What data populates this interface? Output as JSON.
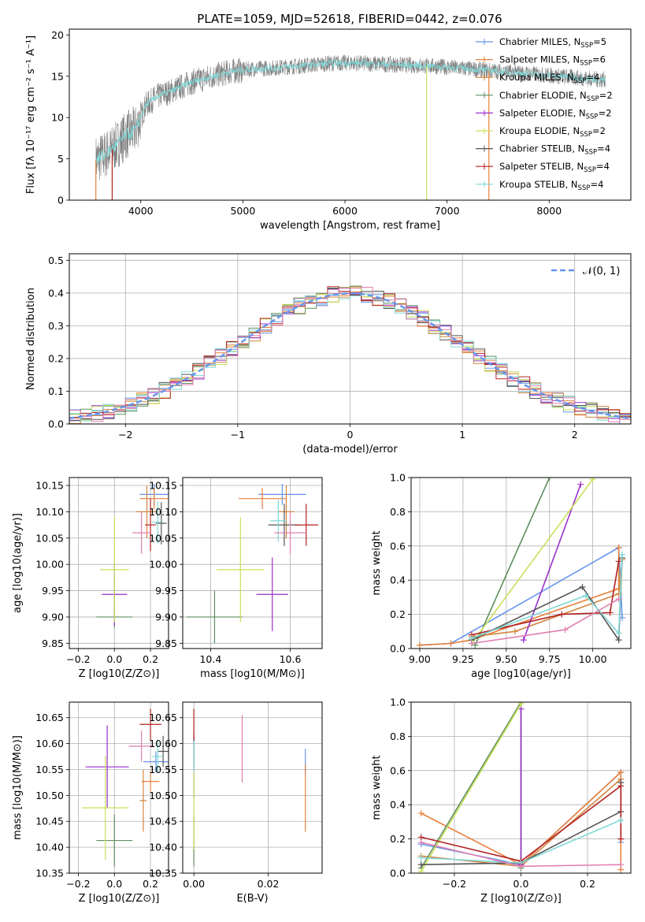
{
  "figure": {
    "title": "PLATE=1059, MJD=52618, FIBERID=0442, z=0.076"
  },
  "colors": {
    "Chabrier MILES": "#6495ed",
    "Salpeter MILES": "#e8803a",
    "Kroupa MILES": "#d2853f",
    "Chabrier ELODIE": "#5f8f5f",
    "Salpeter ELODIE": "#9932cc",
    "Kroupa ELODIE": "#c8e05a",
    "Chabrier STELIB": "#555555",
    "Salpeter STELIB": "#b22222",
    "Kroupa STELIB": "#80d8d8",
    "Pink extra": "#e07fb0",
    "data": "#808080",
    "normal": "#6495ed"
  },
  "chart_data": [
    {
      "id": "spectrum",
      "type": "line",
      "xlabel": "wavelength [Angstrom, rest frame]",
      "ylabel": "Flux [fλ 10⁻¹⁷ erg cm⁻² s⁻¹ A⁻¹]",
      "xlim": [
        3300,
        8800
      ],
      "ylim": [
        0,
        20.7
      ],
      "xticks": [
        4000,
        5000,
        6000,
        7000,
        8000
      ],
      "yticks": [
        0,
        5,
        10,
        15,
        20
      ],
      "continuum_x": [
        3550,
        3650,
        3750,
        3850,
        3950,
        4050,
        4150,
        4300,
        4500,
        4700,
        4900,
        5100,
        5300,
        5500,
        5700,
        5900,
        6100,
        6300,
        6500,
        6700,
        6900,
        7100,
        7300,
        7500,
        7700,
        7900,
        8100,
        8300,
        8500
      ],
      "continuum_y": [
        4.8,
        5.5,
        6.5,
        7.8,
        8.5,
        11.5,
        12.5,
        13.2,
        14.3,
        15.0,
        15.6,
        15.9,
        16.0,
        16.2,
        16.4,
        16.6,
        16.6,
        16.5,
        16.4,
        16.3,
        16.2,
        16.0,
        15.8,
        15.6,
        15.4,
        15.2,
        15.0,
        14.8,
        14.6
      ],
      "legend_position": "upper right",
      "legend": [
        {
          "label": "Chabrier MILES, N",
          "sub": "SSP",
          "tail": "=5",
          "color": "#6495ed"
        },
        {
          "label": "Salpeter MILES, N",
          "sub": "SSP",
          "tail": "=6",
          "color": "#e8803a"
        },
        {
          "label": "Kroupa MILES, N",
          "sub": "SSP",
          "tail": "=4",
          "color": "#d2853f"
        },
        {
          "label": "Chabrier ELODIE, N",
          "sub": "SSP",
          "tail": "=2",
          "color": "#5f8f5f"
        },
        {
          "label": "Salpeter ELODIE, N",
          "sub": "SSP",
          "tail": "=2",
          "color": "#9932cc"
        },
        {
          "label": "Kroupa ELODIE, N",
          "sub": "SSP",
          "tail": "=2",
          "color": "#c8e05a"
        },
        {
          "label": "Chabrier STELIB, N",
          "sub": "SSP",
          "tail": "=4",
          "color": "#555555"
        },
        {
          "label": "Salpeter STELIB, N",
          "sub": "SSP",
          "tail": "=4",
          "color": "#b22222"
        },
        {
          "label": "Kroupa STELIB, N",
          "sub": "SSP",
          "tail": "=4",
          "color": "#80d8d8"
        }
      ]
    },
    {
      "id": "residuals",
      "type": "line",
      "xlabel": "(data-model)/error",
      "ylabel": "Normed distribution",
      "xlim": [
        -2.5,
        2.5
      ],
      "ylim": [
        0,
        0.52
      ],
      "xticks": [
        -2,
        -1,
        0,
        1,
        2
      ],
      "yticks": [
        0.0,
        0.1,
        0.2,
        0.3,
        0.4,
        0.5
      ],
      "grid": true,
      "legend": [
        {
          "label": "𝒩(0, 1)",
          "color": "#6495ed",
          "style": "dashed"
        }
      ],
      "legend_position": "upper right"
    },
    {
      "id": "age_vs_Z",
      "type": "scatter",
      "xlabel": "Z [log10(Z/Z⊙)]",
      "ylabel": "age  [log10(age/yr)]",
      "xlim": [
        -0.25,
        0.3
      ],
      "ylim": [
        9.84,
        10.165
      ],
      "xticks": [
        -0.2,
        0.0,
        0.2
      ],
      "yticks": [
        9.85,
        9.9,
        9.95,
        10.0,
        10.05,
        10.1,
        10.15
      ],
      "grid": true,
      "points": [
        {
          "x": 0.22,
          "y": 10.133,
          "xerr": 0.08,
          "yerr": 0.02,
          "color": "#6495ed"
        },
        {
          "x": 0.22,
          "y": 10.125,
          "xerr": 0.08,
          "yerr": 0.02,
          "color": "#e8803a"
        },
        {
          "x": 0.18,
          "y": 10.1,
          "xerr": 0.06,
          "yerr": 0.05,
          "color": "#d2853f"
        },
        {
          "x": 0.0,
          "y": 9.9,
          "xerr": 0.1,
          "yerr": 0.02,
          "color": "#5f8f5f"
        },
        {
          "x": 0.0,
          "y": 9.943,
          "xerr": 0.07,
          "yerr": 0.06,
          "color": "#9932cc"
        },
        {
          "x": 0.0,
          "y": 9.99,
          "xerr": 0.08,
          "yerr": 0.1,
          "color": "#c8e05a"
        },
        {
          "x": 0.26,
          "y": 10.078,
          "xerr": 0.03,
          "yerr": 0.04,
          "color": "#555555"
        },
        {
          "x": 0.2,
          "y": 10.075,
          "xerr": 0.03,
          "yerr": 0.05,
          "color": "#b22222"
        },
        {
          "x": 0.24,
          "y": 10.08,
          "xerr": 0.03,
          "yerr": 0.04,
          "color": "#80d8d8"
        },
        {
          "x": 0.15,
          "y": 10.06,
          "xerr": 0.05,
          "yerr": 0.04,
          "color": "#e07fb0"
        }
      ]
    },
    {
      "id": "age_vs_mass",
      "type": "scatter",
      "xlabel": "mass [log10(M/M⊙)]",
      "ylabel": "",
      "xlim": [
        10.33,
        10.68
      ],
      "ylim": [
        9.84,
        10.165
      ],
      "xticks": [
        10.4,
        10.6
      ],
      "yticks": [
        9.85,
        9.9,
        9.95,
        10.0,
        10.05,
        10.1,
        10.15
      ],
      "grid": true,
      "points": [
        {
          "x": 10.58,
          "y": 10.133,
          "xerr": 0.06,
          "yerr": 0.02,
          "color": "#6495ed"
        },
        {
          "x": 10.53,
          "y": 10.125,
          "xerr": 0.06,
          "yerr": 0.02,
          "color": "#e8803a"
        },
        {
          "x": 10.59,
          "y": 10.1,
          "xerr": 0.02,
          "yerr": 0.05,
          "color": "#d2853f"
        },
        {
          "x": 10.41,
          "y": 9.9,
          "xerr": 0.07,
          "yerr": 0.05,
          "color": "#5f8f5f"
        },
        {
          "x": 10.555,
          "y": 9.943,
          "xerr": 0.04,
          "yerr": 0.07,
          "color": "#9932cc"
        },
        {
          "x": 10.475,
          "y": 9.99,
          "xerr": 0.06,
          "yerr": 0.1,
          "color": "#c8e05a"
        },
        {
          "x": 10.585,
          "y": 10.075,
          "xerr": 0.04,
          "yerr": 0.04,
          "color": "#555555"
        },
        {
          "x": 10.64,
          "y": 10.075,
          "xerr": 0.03,
          "yerr": 0.04,
          "color": "#b22222"
        },
        {
          "x": 10.57,
          "y": 10.083,
          "xerr": 0.02,
          "yerr": 0.04,
          "color": "#80d8d8"
        },
        {
          "x": 10.6,
          "y": 10.06,
          "xerr": 0.04,
          "yerr": 0.04,
          "color": "#e07fb0"
        }
      ]
    },
    {
      "id": "weight_vs_age",
      "type": "line",
      "xlabel": "age  [log10(age/yr)]",
      "ylabel": "mass weight",
      "xlim": [
        8.95,
        10.22
      ],
      "ylim": [
        0,
        1.0
      ],
      "xticks": [
        9.0,
        9.25,
        9.5,
        9.75,
        10.0
      ],
      "xticklabels": [
        "9.00",
        "9.25",
        "9.50",
        "9.75",
        "10.00"
      ],
      "yticks": [
        0.0,
        0.2,
        0.4,
        0.6,
        0.8,
        1.0
      ],
      "grid": true,
      "series": [
        {
          "x": [
            9.0,
            9.18,
            10.15,
            10.17
          ],
          "y": [
            0.02,
            0.03,
            0.59,
            0.18
          ],
          "color": "#6495ed"
        },
        {
          "x": [
            9.0,
            9.18,
            9.3,
            10.15,
            10.15
          ],
          "y": [
            0.02,
            0.03,
            0.05,
            0.35,
            0.59
          ],
          "color": "#e8803a"
        },
        {
          "x": [
            9.3,
            9.55,
            10.15,
            10.17
          ],
          "y": [
            0.07,
            0.1,
            0.32,
            0.52
          ],
          "color": "#d2853f"
        },
        {
          "x": [
            9.32,
            9.75
          ],
          "y": [
            0.02,
            1.0
          ],
          "color": "#5f8f5f"
        },
        {
          "x": [
            9.6,
            9.93
          ],
          "y": [
            0.05,
            0.96
          ],
          "color": "#9932cc"
        },
        {
          "x": [
            9.3,
            10.0
          ],
          "y": [
            0.03,
            0.99
          ],
          "color": "#c8e05a"
        },
        {
          "x": [
            9.3,
            9.94,
            10.15,
            10.17
          ],
          "y": [
            0.05,
            0.36,
            0.05,
            0.53
          ],
          "color": "#555555"
        },
        {
          "x": [
            9.3,
            9.82,
            10.1,
            10.15
          ],
          "y": [
            0.08,
            0.2,
            0.21,
            0.51
          ],
          "color": "#b22222"
        },
        {
          "x": [
            9.3,
            9.96,
            10.15,
            10.17
          ],
          "y": [
            0.06,
            0.31,
            0.09,
            0.55
          ],
          "color": "#80d8d8"
        },
        {
          "x": [
            9.3,
            9.84,
            10.15
          ],
          "y": [
            0.03,
            0.11,
            0.29
          ],
          "color": "#e07fb0"
        }
      ]
    },
    {
      "id": "mass_vs_Z",
      "type": "scatter",
      "xlabel": "Z [log10(Z/Z⊙)]",
      "ylabel": "mass [log10(M/M⊙)]",
      "xlim": [
        -0.25,
        0.3
      ],
      "ylim": [
        10.35,
        10.68
      ],
      "xticks": [
        -0.2,
        0.0,
        0.2
      ],
      "yticks": [
        10.35,
        10.4,
        10.45,
        10.5,
        10.55,
        10.6,
        10.65
      ],
      "grid": true,
      "points": [
        {
          "x": 0.23,
          "y": 10.565,
          "xerr": 0.07,
          "yerr": 0.02,
          "color": "#6495ed"
        },
        {
          "x": 0.2,
          "y": 10.527,
          "xerr": 0.05,
          "yerr": 0.02,
          "color": "#e8803a"
        },
        {
          "x": 0.16,
          "y": 10.49,
          "xerr": 0.02,
          "yerr": 0.06,
          "color": "#d2853f"
        },
        {
          "x": 0.0,
          "y": 10.413,
          "xerr": 0.1,
          "yerr": 0.05,
          "color": "#5f8f5f"
        },
        {
          "x": -0.04,
          "y": 10.555,
          "xerr": 0.12,
          "yerr": 0.08,
          "color": "#9932cc"
        },
        {
          "x": -0.05,
          "y": 10.476,
          "xerr": 0.13,
          "yerr": 0.1,
          "color": "#c8e05a"
        },
        {
          "x": 0.27,
          "y": 10.585,
          "xerr": 0.03,
          "yerr": 0.03,
          "color": "#555555"
        },
        {
          "x": 0.2,
          "y": 10.637,
          "xerr": 0.06,
          "yerr": 0.03,
          "color": "#b22222"
        },
        {
          "x": 0.24,
          "y": 10.575,
          "xerr": 0.03,
          "yerr": 0.03,
          "color": "#80d8d8"
        },
        {
          "x": 0.15,
          "y": 10.595,
          "xerr": 0.07,
          "yerr": 0.03,
          "color": "#e07fb0"
        }
      ]
    },
    {
      "id": "mass_vs_ebv",
      "type": "scatter",
      "xlabel": "E(B-V)",
      "ylabel": "",
      "xlim": [
        -0.003,
        0.0345
      ],
      "ylim": [
        10.35,
        10.68
      ],
      "xticks": [
        0.0,
        0.02
      ],
      "xticklabels": [
        "0.00",
        "0.02"
      ],
      "yticks": [
        10.35,
        10.4,
        10.45,
        10.5,
        10.55,
        10.6,
        10.65
      ],
      "grid": true,
      "points": [
        {
          "x": 0.03,
          "y": 10.565,
          "xerr": 0,
          "yerr": 0.025,
          "color": "#6495ed"
        },
        {
          "x": 0.03,
          "y": 10.495,
          "xerr": 0,
          "yerr": 0.065,
          "color": "#e8803a"
        },
        {
          "x": 0.0,
          "y": 10.6,
          "xerr": 0,
          "yerr": 0.02,
          "color": "#d2853f"
        },
        {
          "x": 0.0,
          "y": 10.413,
          "xerr": 0,
          "yerr": 0.05,
          "color": "#5f8f5f"
        },
        {
          "x": 0.0,
          "y": 10.555,
          "xerr": 0,
          "yerr": 0.06,
          "color": "#9932cc"
        },
        {
          "x": 0.0,
          "y": 10.476,
          "xerr": 0,
          "yerr": 0.08,
          "color": "#c8e05a"
        },
        {
          "x": 0.0,
          "y": 10.585,
          "xerr": 0,
          "yerr": 0.03,
          "color": "#555555"
        },
        {
          "x": 0.0,
          "y": 10.637,
          "xerr": 0,
          "yerr": 0.03,
          "color": "#b22222"
        },
        {
          "x": 0.0,
          "y": 10.575,
          "xerr": 0,
          "yerr": 0.03,
          "color": "#80d8d8"
        },
        {
          "x": 0.013,
          "y": 10.59,
          "xerr": 0,
          "yerr": 0.065,
          "color": "#e07fb0"
        }
      ]
    },
    {
      "id": "weight_vs_Z",
      "type": "line",
      "xlabel": "Z [log10(Z/Z⊙)]",
      "ylabel": "mass weight",
      "xlim": [
        -0.33,
        0.33
      ],
      "ylim": [
        0,
        1.0
      ],
      "xticks": [
        -0.2,
        0.0,
        0.2
      ],
      "yticks": [
        0.0,
        0.2,
        0.4,
        0.6,
        0.8,
        1.0
      ],
      "grid": true,
      "series": [
        {
          "x": [
            -0.3,
            0.0,
            0.3,
            0.3
          ],
          "y": [
            0.17,
            0.05,
            0.59,
            0.18
          ],
          "color": "#6495ed"
        },
        {
          "x": [
            -0.3,
            0.0,
            0.3,
            0.3
          ],
          "y": [
            0.35,
            0.05,
            0.59,
            0.02
          ],
          "color": "#e8803a"
        },
        {
          "x": [
            -0.3,
            0.0,
            0.3
          ],
          "y": [
            0.1,
            0.04,
            0.55
          ],
          "color": "#d2853f"
        },
        {
          "x": [
            -0.3,
            0.0,
            0.0
          ],
          "y": [
            0.03,
            1.0,
            0.03
          ],
          "color": "#5f8f5f"
        },
        {
          "x": [
            0.0,
            0.0
          ],
          "y": [
            0.05,
            0.96
          ],
          "color": "#9932cc"
        },
        {
          "x": [
            -0.3,
            0.0
          ],
          "y": [
            0.01,
            0.99
          ],
          "color": "#c8e05a"
        },
        {
          "x": [
            -0.3,
            0.0,
            0.3,
            0.3
          ],
          "y": [
            0.05,
            0.06,
            0.36,
            0.53
          ],
          "color": "#555555"
        },
        {
          "x": [
            -0.3,
            0.0,
            0.3,
            0.3
          ],
          "y": [
            0.21,
            0.07,
            0.51,
            0.2
          ],
          "color": "#b22222"
        },
        {
          "x": [
            -0.3,
            0.0,
            0.3
          ],
          "y": [
            0.09,
            0.06,
            0.31
          ],
          "color": "#80d8d8"
        },
        {
          "x": [
            -0.3,
            0.0,
            0.3
          ],
          "y": [
            0.18,
            0.04,
            0.05
          ],
          "color": "#e07fb0"
        }
      ]
    }
  ]
}
